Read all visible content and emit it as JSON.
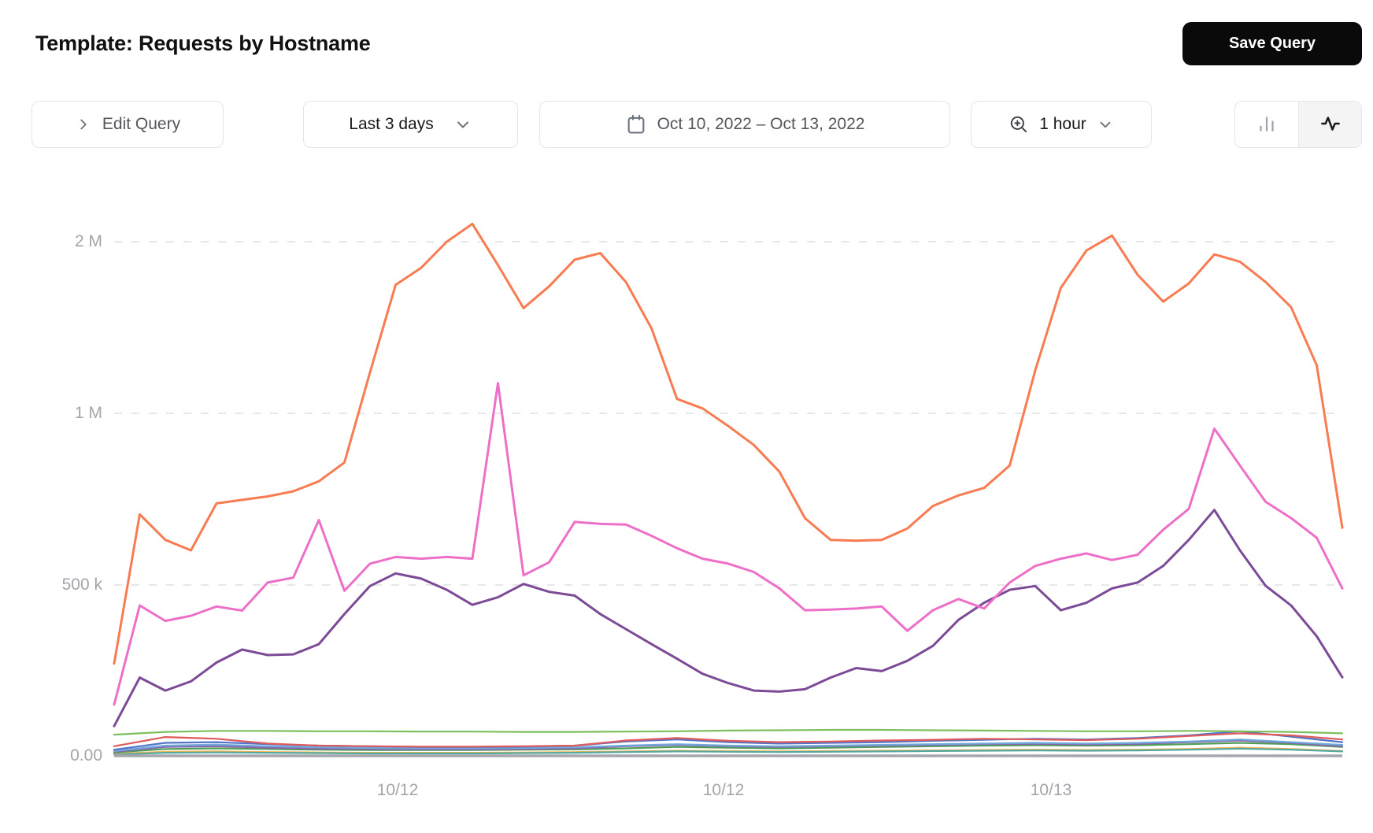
{
  "header": {
    "title": "Template: Requests by Hostname",
    "save_button": "Save Query"
  },
  "toolbar": {
    "edit_query": "Edit Query",
    "time_range": "Last 3 days",
    "date_range": "Oct 10, 2022 – Oct 13, 2022",
    "resolution": "1 hour",
    "chart_type_selected": "line"
  },
  "chart_data": {
    "type": "line",
    "title": "Requests by Hostname",
    "unit": "requests, values in thousands",
    "y_scale": "log2 halving per gridline above 500k, linear from 500k down to 0",
    "y_tick_labels": [
      "2 M",
      "1 M",
      "500 k",
      "0.00"
    ],
    "y_tick_values": [
      2000,
      1000,
      500,
      0
    ],
    "x_tick_labels": [
      "10/12",
      "10/12",
      "10/13"
    ],
    "grid": "dashed horizontal",
    "legend": "none",
    "series": [
      {
        "id": "amber",
        "color": "#efb44e",
        "width": 2.2,
        "values": [
          6,
          12,
          13,
          11,
          10,
          9,
          9,
          9,
          10,
          11,
          13,
          15,
          14,
          13,
          14,
          15,
          16,
          17,
          18,
          17,
          18,
          20,
          24,
          20,
          14
        ]
      },
      {
        "id": "teal",
        "color": "#56a8a2",
        "width": 2.2,
        "values": [
          4,
          9,
          10,
          9,
          8,
          7,
          7,
          7,
          8,
          9,
          11,
          13,
          12,
          11,
          12,
          13,
          14,
          15,
          16,
          15,
          16,
          18,
          21,
          18,
          13
        ]
      },
      {
        "id": "forest",
        "color": "#4e9e57",
        "width": 2.2,
        "values": [
          10,
          20,
          22,
          20,
          18,
          17,
          17,
          17,
          18,
          19,
          22,
          26,
          24,
          22,
          24,
          26,
          28,
          30,
          31,
          30,
          31,
          34,
          38,
          34,
          26
        ]
      },
      {
        "id": "violet",
        "color": "#8b62ac",
        "width": 2.2,
        "values": [
          12,
          26,
          28,
          24,
          21,
          20,
          19,
          19,
          20,
          22,
          28,
          32,
          28,
          26,
          28,
          30,
          32,
          34,
          35,
          33,
          35,
          40,
          45,
          38,
          28
        ]
      },
      {
        "id": "sky",
        "color": "#6fa9db",
        "width": 2.2,
        "values": [
          14,
          30,
          33,
          28,
          25,
          23,
          22,
          22,
          23,
          25,
          30,
          34,
          30,
          28,
          30,
          32,
          34,
          36,
          38,
          36,
          38,
          42,
          48,
          40,
          32
        ]
      },
      {
        "id": "blue",
        "color": "#5274c9",
        "width": 2.2,
        "values": [
          18,
          38,
          40,
          34,
          30,
          28,
          26,
          26,
          27,
          30,
          42,
          48,
          40,
          36,
          38,
          40,
          44,
          47,
          50,
          48,
          52,
          60,
          72,
          56,
          40
        ]
      },
      {
        "id": "green",
        "color": "#7cc05e",
        "width": 2.2,
        "values": [
          62,
          70,
          73,
          73,
          72,
          72,
          71,
          71,
          70,
          70,
          71,
          72,
          74,
          75,
          76,
          76,
          75,
          74,
          73,
          72,
          72,
          73,
          72,
          70,
          66
        ]
      },
      {
        "id": "red",
        "color": "#df5a5a",
        "width": 2.2,
        "values": [
          28,
          55,
          50,
          36,
          30,
          28,
          27,
          27,
          28,
          30,
          45,
          52,
          44,
          40,
          42,
          45,
          47,
          50,
          48,
          46,
          50,
          58,
          66,
          60,
          48
        ]
      },
      {
        "id": "purple",
        "color": "#7c4a96",
        "width": 3,
        "values": [
          87,
          229,
          191,
          218,
          273,
          311,
          295,
          297,
          327,
          415,
          497,
          524,
          513,
          486,
          442,
          464,
          502,
          480,
          469,
          415,
          371,
          327,
          284,
          240,
          213,
          191,
          188,
          195,
          229,
          257,
          248,
          278,
          322,
          398,
          448,
          486,
          497,
          426,
          448,
          490,
          505,
          540,
          600,
          677,
          575,
          498,
          440,
          350,
          230
        ]
      },
      {
        "id": "pink",
        "color": "#ee6fc8",
        "width": 3,
        "values": [
          150,
          440,
          395,
          410,
          437,
          425,
          505,
          515,
          650,
          483,
          545,
          560,
          556,
          560,
          556,
          1130,
          520,
          548,
          645,
          640,
          638,
          610,
          580,
          556,
          545,
          527,
          490,
          426,
          428,
          431,
          437,
          366,
          426,
          459,
          431,
          505,
          540,
          556,
          568,
          553,
          565,
          625,
          680,
          940,
          810,
          700,
          655,
          605,
          490
        ]
      },
      {
        "id": "orange",
        "color": "#f87b51",
        "width": 3,
        "values": [
          270,
          665,
          600,
          575,
          695,
          705,
          715,
          730,
          760,
          820,
          1180,
          1680,
          1800,
          2000,
          2150,
          1820,
          1530,
          1670,
          1860,
          1910,
          1700,
          1410,
          1060,
          1020,
          950,
          880,
          790,
          655,
          600,
          598,
          600,
          628,
          688,
          718,
          740,
          810,
          1190,
          1660,
          1930,
          2050,
          1750,
          1570,
          1690,
          1900,
          1845,
          1700,
          1535,
          1215,
          630
        ]
      }
    ]
  }
}
